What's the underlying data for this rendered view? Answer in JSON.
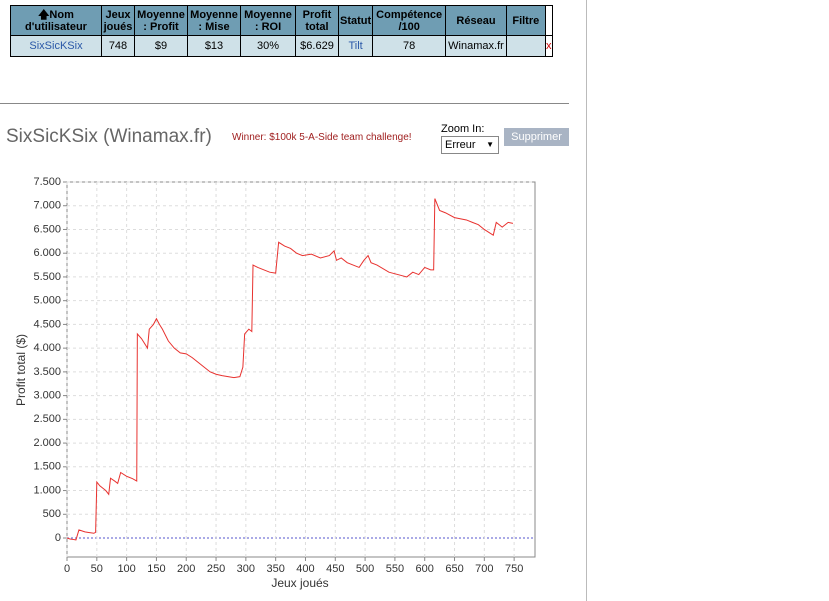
{
  "table": {
    "headers": [
      "Nom d'utilisateur",
      "Jeux joués",
      "Moyenne : Profit",
      "Moyenne : Mise",
      "Moyenne : ROI",
      "Profit total",
      "Statut",
      "Compétence /100",
      "Réseau",
      "Filtre"
    ],
    "rows": [
      [
        "SixSicKSix",
        "748",
        "$9",
        "$13",
        "30%",
        "$6.629",
        "Tilt",
        "78",
        "Winamax.fr"
      ]
    ],
    "delete": "x"
  },
  "player_title": "SixSicKSix (Winamax.fr)",
  "winner": "Winner: $100k 5-A-Side team challenge!",
  "zoom_label": "Zoom In:",
  "zoom_value": "Erreur",
  "button": "Supprimer",
  "chart_data": {
    "type": "line",
    "color": "#e8322f",
    "x_label": "Jeux joués",
    "y_label": "Profit total ($)",
    "x": [
      0,
      5,
      10,
      15,
      20,
      25,
      30,
      35,
      45,
      48,
      50,
      55,
      60,
      65,
      70,
      73,
      80,
      85,
      90,
      100,
      110,
      117,
      118,
      125,
      130,
      135,
      138,
      145,
      150,
      155,
      160,
      170,
      180,
      190,
      200,
      210,
      220,
      230,
      240,
      250,
      260,
      270,
      280,
      290,
      295,
      298,
      305,
      310,
      312,
      320,
      330,
      340,
      350,
      355,
      365,
      375,
      385,
      395,
      410,
      425,
      440,
      448,
      452,
      460,
      470,
      480,
      490,
      498,
      505,
      510,
      520,
      540,
      555,
      570,
      580,
      590,
      600,
      610,
      615,
      617,
      625,
      635,
      650,
      670,
      680,
      690,
      700,
      710,
      715,
      720,
      725,
      730,
      740,
      748
    ],
    "values": [
      0,
      -20,
      -30,
      -40,
      170,
      150,
      130,
      120,
      100,
      120,
      1180,
      1100,
      1050,
      1000,
      920,
      1260,
      1200,
      1150,
      1380,
      1300,
      1250,
      1200,
      4300,
      4200,
      4100,
      4000,
      4400,
      4500,
      4620,
      4500,
      4400,
      4150,
      4000,
      3900,
      3880,
      3800,
      3700,
      3600,
      3500,
      3450,
      3420,
      3400,
      3380,
      3400,
      3600,
      4300,
      4400,
      4350,
      5750,
      5700,
      5650,
      5600,
      5580,
      6230,
      6150,
      6100,
      6000,
      5950,
      5980,
      5900,
      5950,
      6050,
      5850,
      5900,
      5800,
      5750,
      5700,
      5850,
      5950,
      5800,
      5750,
      5600,
      5550,
      5500,
      5600,
      5550,
      5700,
      5650,
      5650,
      7150,
      6900,
      6850,
      6750,
      6700,
      6650,
      6600,
      6500,
      6420,
      6380,
      6650,
      6600,
      6550,
      6650,
      6629
    ],
    "xlim": [
      0,
      785
    ],
    "ylim": [
      -400,
      7500
    ],
    "xticks": [
      0,
      50,
      100,
      150,
      200,
      250,
      300,
      350,
      400,
      450,
      500,
      550,
      600,
      650,
      700,
      750
    ],
    "yticks": [
      0,
      {
        "value": 500,
        "label": "500"
      },
      {
        "value": 1000,
        "label": "1.000"
      },
      {
        "value": 1500,
        "label": "1.500"
      },
      {
        "value": 2000,
        "label": "2.000"
      },
      {
        "value": 2500,
        "label": "2.500"
      },
      {
        "value": 3000,
        "label": "3.000"
      },
      {
        "value": 3500,
        "label": "3.500"
      },
      {
        "value": 4000,
        "label": "4.000"
      },
      {
        "value": 4500,
        "label": "4.500"
      },
      {
        "value": 5000,
        "label": "5.000"
      },
      {
        "value": 5500,
        "label": "5.500"
      },
      {
        "value": 6000,
        "label": "6.000"
      },
      {
        "value": 6500,
        "label": "6.500"
      },
      {
        "value": 7000,
        "label": "7.000"
      },
      {
        "value": 7500,
        "label": "7.500"
      }
    ],
    "grid": true
  }
}
